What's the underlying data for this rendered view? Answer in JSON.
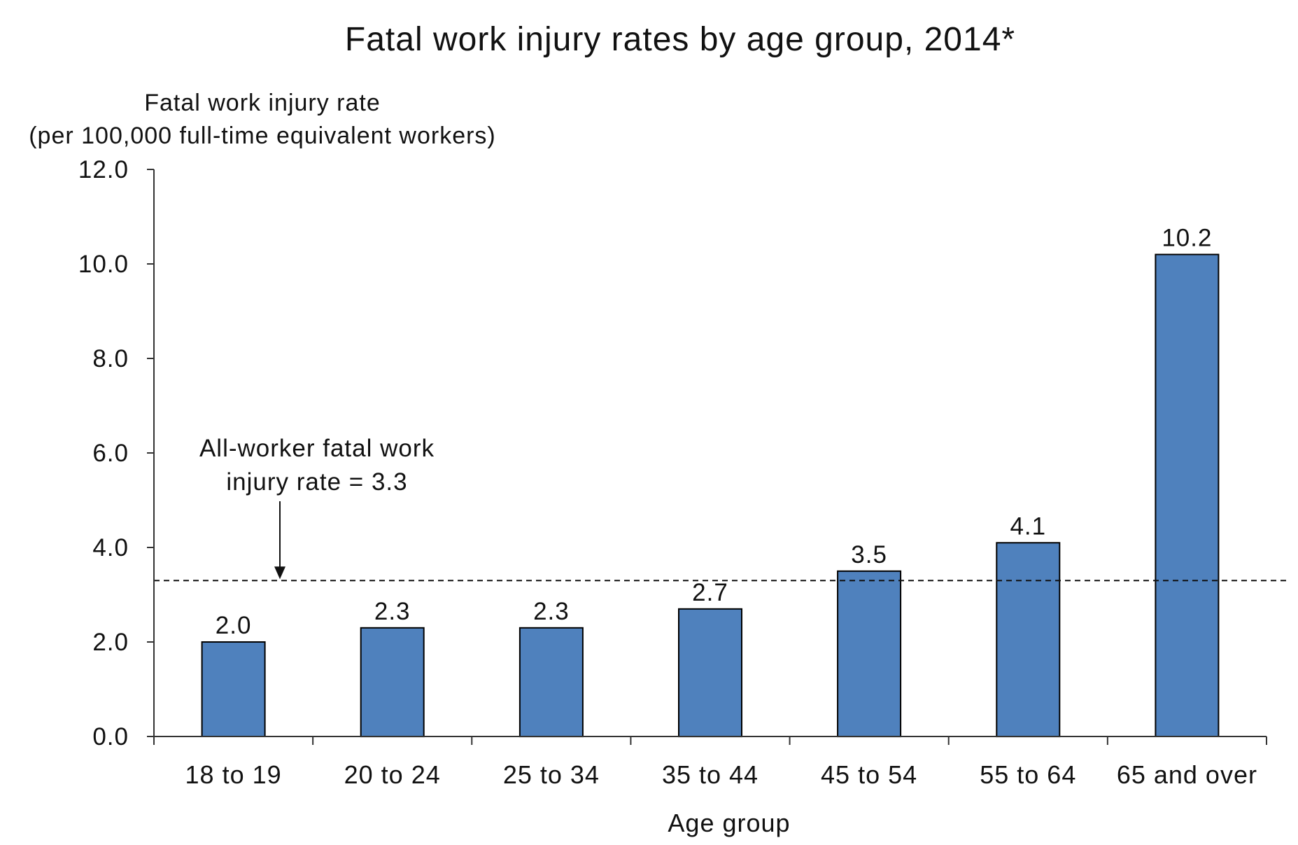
{
  "chart_data": {
    "type": "bar",
    "title": "Fatal work injury rates by age group, 2014*",
    "ylabel_line1": "Fatal work injury rate",
    "ylabel_line2": "(per 100,000 full-time equivalent workers)",
    "xlabel": "Age group",
    "categories": [
      "18 to 19",
      "20 to 24",
      "25 to 34",
      "35 to 44",
      "45 to 54",
      "55 to 64",
      "65 and over"
    ],
    "values": [
      2.0,
      2.3,
      2.3,
      2.7,
      3.5,
      4.1,
      10.2
    ],
    "data_labels": [
      "2.0",
      "2.3",
      "2.3",
      "2.7",
      "3.5",
      "4.1",
      "10.2"
    ],
    "ylim": [
      0,
      12
    ],
    "y_ticks": [
      0,
      2,
      4,
      6,
      8,
      10,
      12
    ],
    "y_tick_labels": [
      "0.0",
      "2.0",
      "4.0",
      "6.0",
      "8.0",
      "10.0",
      "12.0"
    ],
    "reference_line": {
      "value": 3.3,
      "style": "dashed",
      "annotation_line1": "All-worker fatal work",
      "annotation_line2": "injury rate = 3.3"
    },
    "grid": false,
    "legend": "none",
    "bar_color": "#4f81bd",
    "bar_stroke": "#000000"
  }
}
